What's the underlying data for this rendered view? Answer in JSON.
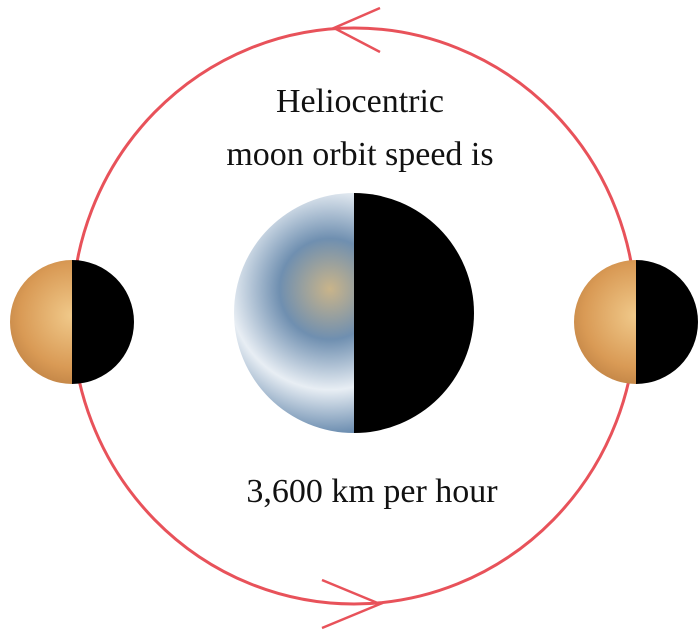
{
  "title": {
    "line1": "Heliocentric",
    "line2": "moon orbit speed is"
  },
  "speed_label": "3,600 km per hour"
}
